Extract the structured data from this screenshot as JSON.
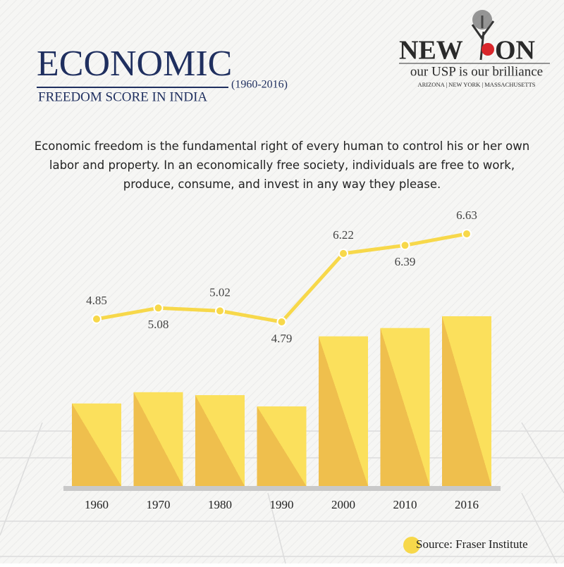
{
  "logo": {
    "name_left": "NEW",
    "name_right": "ON",
    "tagline": "our USP is our brilliance",
    "locations": "ARIZONA | NEW YORK | MASSACHUSETTS"
  },
  "chart_data": {
    "type": "bar-line",
    "title": "ECONOMIC",
    "subtitle": "FREEDOM SCORE IN INDIA",
    "period": "(1960-2016)",
    "description": "Economic freedom is the fundamental right of every human to control his or her own labor and property. In an economically free society, individuals are free to work, produce, consume, and invest in any way they please.",
    "categories": [
      "1960",
      "1970",
      "1980",
      "1990",
      "2000",
      "2010",
      "2016"
    ],
    "values": [
      4.85,
      5.08,
      5.02,
      4.79,
      6.22,
      6.39,
      6.63
    ],
    "bar_color": "#fae060",
    "line_color": "#f7d84a",
    "source": "Source: Fraser Institute"
  }
}
